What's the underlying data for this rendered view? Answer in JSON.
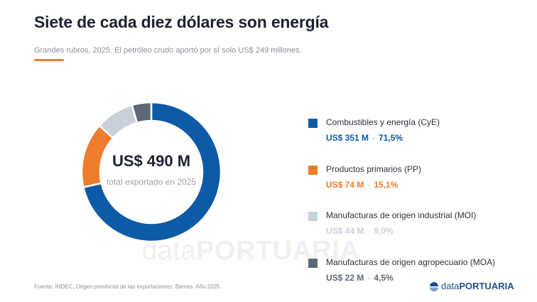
{
  "header": {
    "title": "Siete de cada diez dólares son energía",
    "subtitle": "Grandes rubros, 2025. El petróleo crudo aportó por sí solo US$ 249 millones."
  },
  "colors": {
    "accent": "#ee7d2d",
    "cye": "#0d5aa7",
    "pp": "#ee7d2d",
    "moi": "#c8d0da",
    "moa": "#5d6877"
  },
  "chart_data": {
    "type": "pie",
    "center_value": "US$ 490 M",
    "center_label": "total exportado en 2025",
    "categories": [
      "Combustibles y energía (CyE)",
      "Productos primarios (PP)",
      "Manufacturas de origen industrial (MOI)",
      "Manufacturas de origen agropecuario (MOA)"
    ],
    "values": [
      351,
      74,
      44,
      22
    ],
    "percent_labels": [
      "71,5%",
      "15,1%",
      "9,0%",
      "4,5%"
    ],
    "value_labels": [
      "US$ 351 M",
      "US$ 74 M",
      "US$ 44 M",
      "US$ 22 M"
    ],
    "legend_position": "right"
  },
  "footer": {
    "source": "Fuente: INDEC, Origen provincial de las exportaciones. Bienes. Año 2025"
  },
  "brand": {
    "prefix": "data",
    "name": "PORTUARIA",
    "icon": "dataportuaria-logo-icon"
  },
  "watermark": {
    "prefix": "data",
    "name": "PORTUARIA"
  }
}
